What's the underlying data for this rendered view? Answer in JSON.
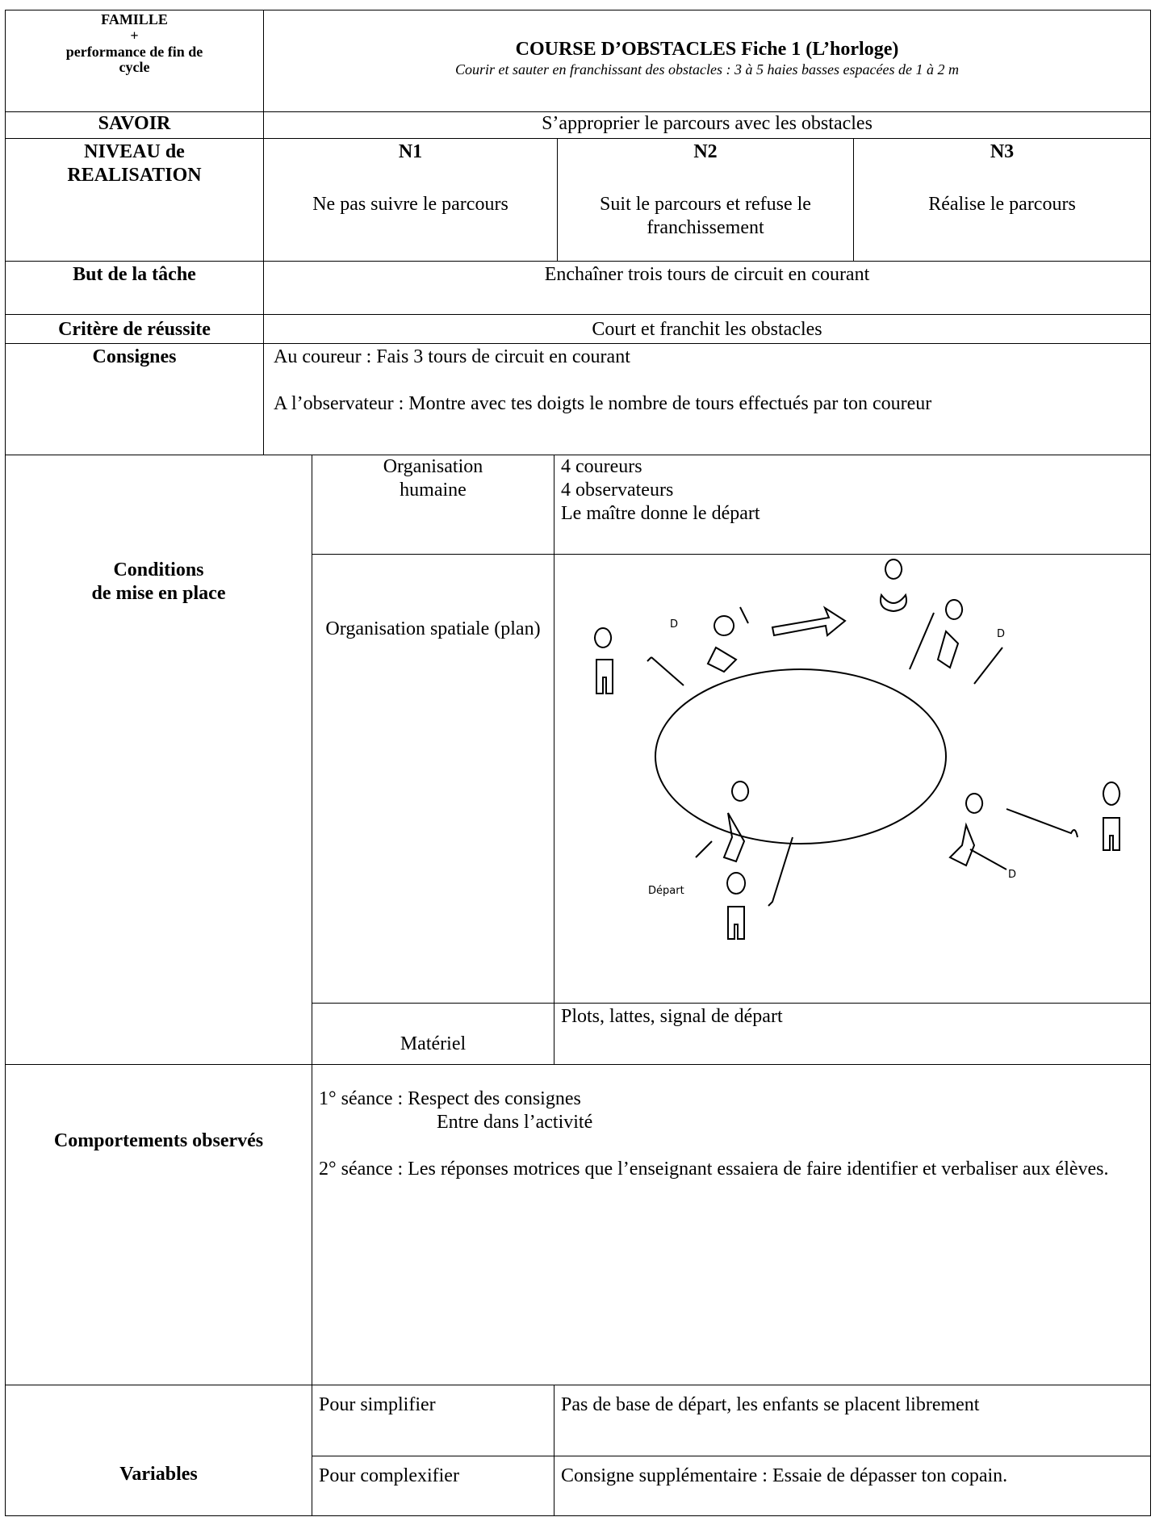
{
  "header": {
    "famille": [
      "FAMILLE",
      "+",
      "performance  de fin de",
      "cycle"
    ],
    "title": "COURSE D’OBSTACLES Fiche 1 (L’horloge)",
    "subtitle": "Courir et sauter en franchissant des obstacles : 3 à 5 haies basses espacées de 1 à 2 m"
  },
  "savoir": {
    "label": "SAVOIR",
    "value": "S’approprier le parcours avec les obstacles"
  },
  "niveau": {
    "label": [
      "NIVEAU de",
      "REALISATION"
    ],
    "levels": [
      {
        "code": "N1",
        "text": "Ne pas suivre le parcours"
      },
      {
        "code": "N2",
        "text": "Suit le parcours et refuse le franchissement"
      },
      {
        "code": "N3",
        "text": "Réalise le parcours"
      }
    ]
  },
  "but": {
    "label": "But de la tâche",
    "value": "Enchaîner trois tours de circuit en courant"
  },
  "critere": {
    "label": "Critère de réussite",
    "value": "Court et franchit les obstacles"
  },
  "consignes": {
    "label": "Consignes",
    "lines": [
      "Au coureur : Fais 3 tours de circuit en courant",
      "A l’observateur : Montre avec tes doigts le nombre de tours effectués par ton coureur"
    ]
  },
  "conditions": {
    "label": [
      "Conditions",
      "de mise en place"
    ],
    "items": [
      {
        "label": "Organisation humaine",
        "lines": [
          "4 coureurs",
          "4 observateurs",
          "Le maître donne le départ"
        ]
      },
      {
        "label": "Organisation spatiale (plan)",
        "drawing_labels": [
          "D",
          "D",
          "D",
          "Départ"
        ]
      },
      {
        "label": "Matériel",
        "lines": [
          "Plots, lattes, signal de départ"
        ]
      }
    ]
  },
  "comportements": {
    "label": "Comportements observés",
    "lines": [
      "1° séance : Respect des consignes",
      "Entre dans l’activité",
      "2° séance : Les réponses motrices que l’enseignant essaiera de faire identifier et verbaliser aux élèves."
    ]
  },
  "variables": {
    "label": "Variables",
    "items": [
      {
        "label": "Pour simplifier",
        "value": "Pas de base de départ, les enfants se placent librement"
      },
      {
        "label": "Pour complexifier",
        "value": "Consigne supplémentaire : Essaie de dépasser ton copain."
      }
    ]
  }
}
